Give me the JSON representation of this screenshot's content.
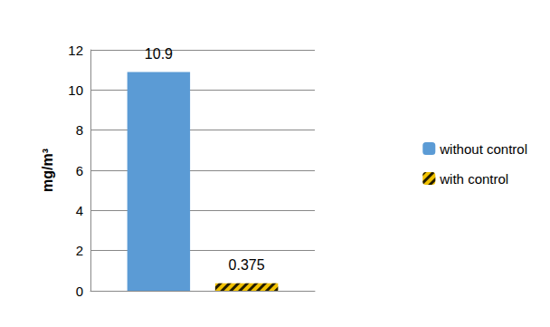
{
  "chart_data": {
    "type": "bar",
    "y_label": "mg/m³",
    "categories": [
      null
    ],
    "series": [
      {
        "name": "without control",
        "color": "#5b9bd5",
        "values": [
          10.9
        ]
      },
      {
        "name": "with control",
        "color": "#f2c200",
        "values": [
          0.375
        ]
      }
    ],
    "ylim": [
      0,
      12
    ],
    "yticks": [
      0,
      2,
      4,
      6,
      8,
      10,
      12
    ],
    "grid": true,
    "legend": "right",
    "data_labels": true
  }
}
